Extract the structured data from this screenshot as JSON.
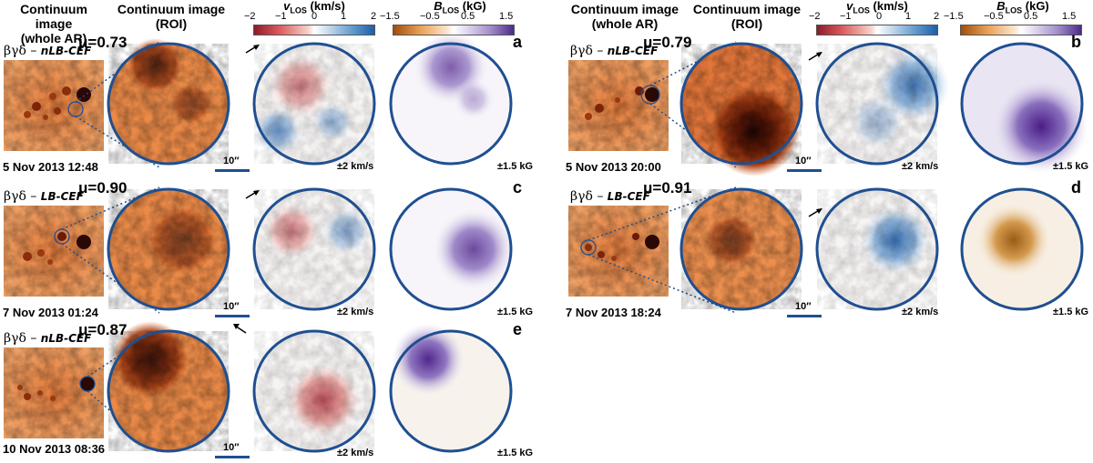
{
  "headers": {
    "whole_ar": "Continuum image\n(whole AR)",
    "roi": "Continuum image\n(ROI)"
  },
  "colorbars": {
    "vlos": {
      "symbol": "v",
      "subscript": "LOS",
      "unit": "(km/s)",
      "ticks": [
        "−2",
        "−1",
        "0",
        "1",
        "2"
      ],
      "range": [
        -2,
        2
      ]
    },
    "blos": {
      "symbol": "B",
      "subscript": "LOS",
      "unit": "(kG)",
      "ticks": [
        "−1.5",
        "−0.5",
        "0.5",
        "1.5"
      ],
      "range": [
        -1.5,
        1.5
      ]
    }
  },
  "panels": [
    {
      "id": "a",
      "config": "βγδ – ",
      "type_label": "nLB-CEF",
      "mu": "μ=0.73",
      "date": "5 Nov 2013 12:48",
      "scale": "10″",
      "vlos_range": "±2 km/s",
      "blos_range": "±1.5 kG",
      "blos_polarity": "positive"
    },
    {
      "id": "b",
      "config": "βγδ – ",
      "type_label": "nLB-CEF",
      "mu": "μ=0.79",
      "date": "5 Nov 2013 20:00",
      "scale": "10″",
      "vlos_range": "±2 km/s",
      "blos_range": "±1.5 kG",
      "blos_polarity": "positive"
    },
    {
      "id": "c",
      "config": "βγδ – ",
      "type_label": "LB-CEF",
      "mu": "μ=0.90",
      "date": "7 Nov 2013 01:24",
      "scale": "10″",
      "vlos_range": "±2 km/s",
      "blos_range": "±1.5 kG",
      "blos_polarity": "positive"
    },
    {
      "id": "d",
      "config": "βγδ – ",
      "type_label": "LB-CEF",
      "mu": "μ=0.91",
      "date": "7 Nov 2013 18:24",
      "scale": "10″",
      "vlos_range": "±2 km/s",
      "blos_range": "±1.5 kG",
      "blos_polarity": "negative"
    },
    {
      "id": "e",
      "config": "βγδ – ",
      "type_label": "nLB-CEF",
      "mu": "μ=0.87",
      "date": "10 Nov 2013 08:36",
      "scale": "10″",
      "vlos_range": "±2 km/s",
      "blos_range": "±1.5 kG",
      "blos_polarity": "positive"
    }
  ]
}
